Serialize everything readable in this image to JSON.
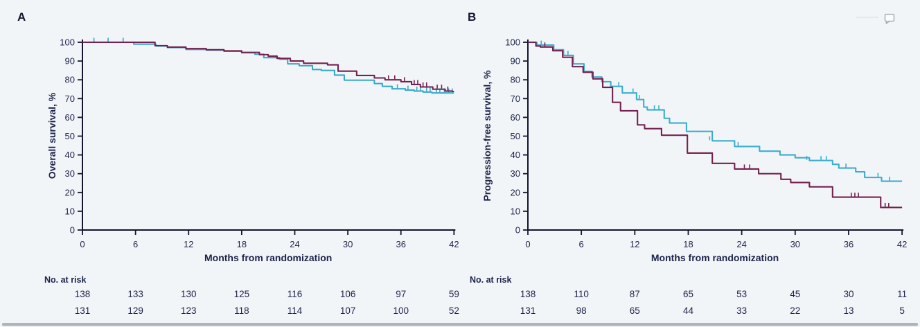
{
  "page": {
    "background": "#f2f5f8",
    "bottom_bar_color": "#a7abb1"
  },
  "icons": {
    "comment_icon": "speech-bubble"
  },
  "chart_data": [
    {
      "id": "A",
      "type": "line",
      "panel_label": "A",
      "ylabel": "Overall survival, %",
      "xlabel": "Months from randomization",
      "xlim": [
        0,
        42
      ],
      "ylim": [
        0,
        100
      ],
      "x_ticks": [
        0,
        6,
        12,
        18,
        24,
        30,
        36,
        42
      ],
      "y_ticks": [
        100,
        90,
        80,
        70,
        60,
        50,
        40,
        30,
        20,
        10,
        0
      ],
      "grid": false,
      "legend": "none",
      "series": [
        {
          "name": "arm-teal",
          "color": "#39a9c8",
          "steps": [
            [
              0,
              100
            ],
            [
              5.8,
              99
            ],
            [
              8.3,
              98
            ],
            [
              9.6,
              97.2
            ],
            [
              11.7,
              96.2
            ],
            [
              14,
              95.8
            ],
            [
              16,
              95.2
            ],
            [
              18,
              94.4
            ],
            [
              19.5,
              93.6
            ],
            [
              20.5,
              91.8
            ],
            [
              22.3,
              91
            ],
            [
              23.2,
              88.5
            ],
            [
              24.5,
              87.5
            ],
            [
              26,
              85.5
            ],
            [
              27,
              85
            ],
            [
              28.5,
              82.5
            ],
            [
              29.6,
              79.8
            ],
            [
              33,
              78
            ],
            [
              33.9,
              76.5
            ],
            [
              35,
              75.2
            ],
            [
              36.5,
              74.5
            ],
            [
              37.5,
              74
            ],
            [
              38.5,
              73.5
            ],
            [
              39.5,
              73
            ]
          ],
          "censors": [
            [
              1.3,
              100
            ],
            [
              2.9,
              100
            ],
            [
              4.6,
              100
            ],
            [
              35.6,
              75.2
            ],
            [
              36.8,
              74.5
            ],
            [
              37.8,
              74
            ],
            [
              38.2,
              74
            ],
            [
              38.9,
              73.5
            ],
            [
              39.3,
              73.5
            ],
            [
              40,
              73
            ],
            [
              40.4,
              73
            ],
            [
              40.9,
              73
            ],
            [
              41.4,
              73
            ],
            [
              41.8,
              73
            ]
          ]
        },
        {
          "name": "arm-maroon",
          "color": "#74214f",
          "steps": [
            [
              0,
              100
            ],
            [
              8.2,
              98.2
            ],
            [
              9.6,
              97.4
            ],
            [
              11.7,
              96.6
            ],
            [
              14,
              96
            ],
            [
              16,
              95.4
            ],
            [
              18,
              94.6
            ],
            [
              20,
              93.4
            ],
            [
              21,
              92.6
            ],
            [
              22,
              91.4
            ],
            [
              23.5,
              90
            ],
            [
              25,
              88.8
            ],
            [
              27.7,
              88
            ],
            [
              28.9,
              84.6
            ],
            [
              31,
              82.3
            ],
            [
              33,
              81
            ],
            [
              34.2,
              80
            ],
            [
              36,
              79
            ],
            [
              37.2,
              77.5
            ],
            [
              38.2,
              76.2
            ],
            [
              39.6,
              75
            ],
            [
              41,
              74
            ],
            [
              41.8,
              73.8
            ]
          ],
          "censors": [
            [
              34.6,
              80
            ],
            [
              35.3,
              80
            ],
            [
              36.4,
              79
            ],
            [
              37.5,
              77.5
            ],
            [
              37.9,
              77.5
            ],
            [
              38.5,
              76.2
            ],
            [
              38.9,
              76.2
            ],
            [
              40.1,
              75
            ],
            [
              40.6,
              75
            ],
            [
              41.3,
              74
            ]
          ]
        }
      ],
      "no_at_risk": {
        "label": "No. at risk",
        "rows": [
          {
            "name": "arm-teal",
            "color": "#2f9fc6",
            "values": [
              138,
              133,
              130,
              125,
              116,
              106,
              97,
              59
            ]
          },
          {
            "name": "arm-maroon",
            "color": "#7c2458",
            "values": [
              131,
              129,
              123,
              118,
              114,
              107,
              100,
              52
            ]
          }
        ]
      }
    },
    {
      "id": "B",
      "type": "line",
      "panel_label": "B",
      "ylabel": "Progression-free survival, %",
      "xlabel": "Months from randomization",
      "xlim": [
        0,
        42
      ],
      "ylim": [
        0,
        100
      ],
      "x_ticks": [
        0,
        6,
        12,
        18,
        24,
        30,
        36,
        42
      ],
      "y_ticks": [
        100,
        90,
        80,
        70,
        60,
        50,
        40,
        30,
        20,
        10,
        0
      ],
      "grid": false,
      "legend": "none",
      "series": [
        {
          "name": "arm-teal",
          "color": "#3dadcc",
          "steps": [
            [
              0,
              100
            ],
            [
              1.0,
              98.5
            ],
            [
              2.9,
              96
            ],
            [
              4.0,
              93
            ],
            [
              5.1,
              88.5
            ],
            [
              6.3,
              84.5
            ],
            [
              7.2,
              81.5
            ],
            [
              8.3,
              79
            ],
            [
              9.3,
              76.5
            ],
            [
              10.6,
              73
            ],
            [
              12.2,
              69.5
            ],
            [
              13.0,
              65.5
            ],
            [
              13.4,
              64
            ],
            [
              15.3,
              59.5
            ],
            [
              15.9,
              57
            ],
            [
              17.8,
              52.5
            ],
            [
              20.7,
              47.5
            ],
            [
              23.2,
              44.5
            ],
            [
              26,
              42
            ],
            [
              28.3,
              40
            ],
            [
              30,
              38.5
            ],
            [
              31.6,
              37
            ],
            [
              34.2,
              35
            ],
            [
              34.9,
              33
            ],
            [
              36.8,
              31
            ],
            [
              37.8,
              28
            ],
            [
              39.7,
              26
            ]
          ],
          "censors": [
            [
              1.5,
              98.5
            ],
            [
              4.5,
              93
            ],
            [
              10.2,
              76.5
            ],
            [
              11.8,
              73
            ],
            [
              12.5,
              69.5
            ],
            [
              14.2,
              64
            ],
            [
              14.7,
              64
            ],
            [
              20.4,
              47.5
            ],
            [
              23.6,
              44.5
            ],
            [
              31.3,
              37
            ],
            [
              32.9,
              37
            ],
            [
              33.5,
              37
            ],
            [
              35.7,
              33
            ],
            [
              39.3,
              28
            ],
            [
              40.6,
              26
            ]
          ]
        },
        {
          "name": "arm-maroon",
          "color": "#74214f",
          "steps": [
            [
              0,
              100
            ],
            [
              0.9,
              98
            ],
            [
              1.4,
              97.5
            ],
            [
              2.8,
              95.5
            ],
            [
              3.9,
              92
            ],
            [
              5.0,
              87
            ],
            [
              6.2,
              84
            ],
            [
              7.3,
              80.5
            ],
            [
              8.4,
              76
            ],
            [
              9.5,
              68
            ],
            [
              10.4,
              63.5
            ],
            [
              12.3,
              56
            ],
            [
              13.1,
              54
            ],
            [
              15.0,
              50.5
            ],
            [
              17.9,
              41
            ],
            [
              20.7,
              35.5
            ],
            [
              23.2,
              32.5
            ],
            [
              25.9,
              30
            ],
            [
              28.4,
              27
            ],
            [
              29.5,
              25.3
            ],
            [
              31.6,
              23
            ],
            [
              34.2,
              17.5
            ],
            [
              39.6,
              12
            ]
          ],
          "censors": [
            [
              1.9,
              97.5
            ],
            [
              24.3,
              32.5
            ],
            [
              24.9,
              32.5
            ],
            [
              36.3,
              17.5
            ],
            [
              36.7,
              17.5
            ],
            [
              37.1,
              17.5
            ],
            [
              40.1,
              12
            ],
            [
              40.5,
              12
            ]
          ]
        }
      ],
      "no_at_risk": {
        "label": "No. at risk",
        "rows": [
          {
            "name": "arm-teal",
            "color": "#2f9fc6",
            "values": [
              138,
              110,
              87,
              65,
              53,
              45,
              30,
              11
            ]
          },
          {
            "name": "arm-maroon",
            "color": "#7c2458",
            "values": [
              131,
              98,
              65,
              44,
              33,
              22,
              13,
              5
            ]
          }
        ]
      }
    }
  ]
}
